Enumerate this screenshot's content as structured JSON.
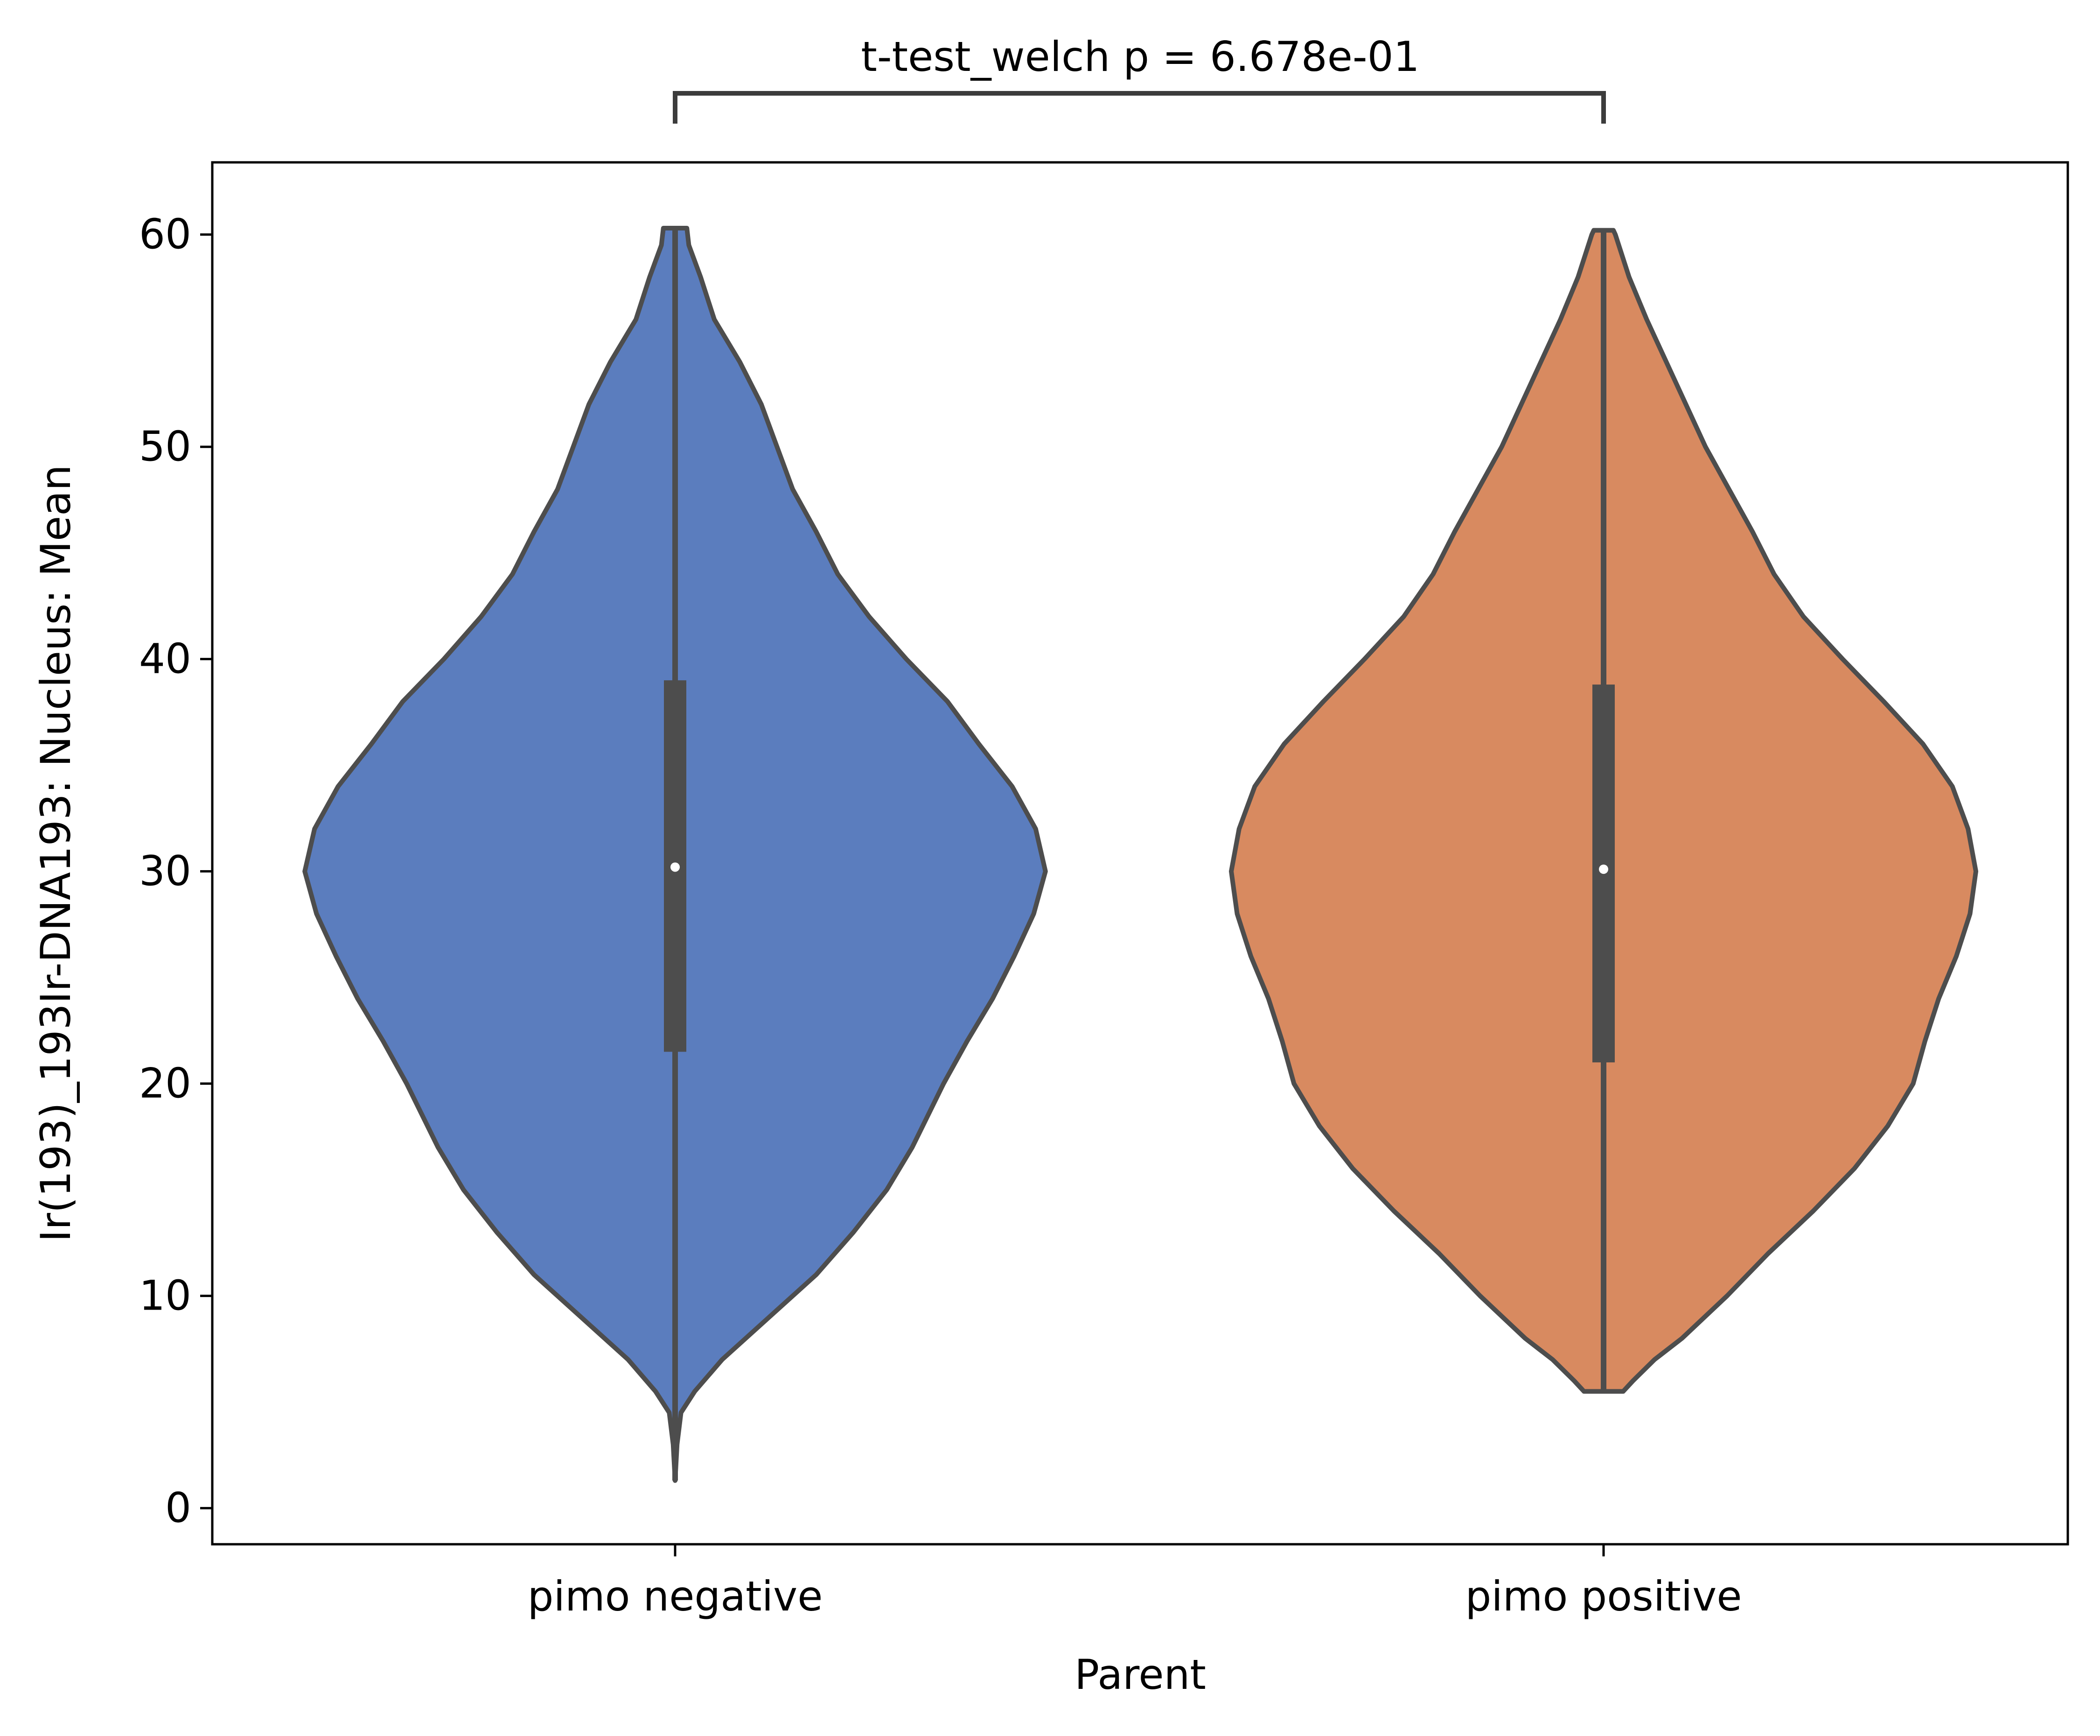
{
  "chart_data": {
    "type": "violin",
    "title": "",
    "xlabel": "Parent",
    "ylabel": "Ir(193)_193Ir-DNA193: Nucleus: Mean",
    "ylim": [
      -1.7,
      63.4
    ],
    "yticks": [
      0,
      10,
      20,
      30,
      40,
      50,
      60
    ],
    "grid": false,
    "legend": "none",
    "categories": [
      "pimo negative",
      "pimo positive"
    ],
    "series": [
      {
        "category": "pimo negative",
        "color": "#5b7dbe",
        "min": 1.3,
        "max": 60.3,
        "q1": 21.5,
        "median": 30.2,
        "q3": 39.0,
        "profile": [
          [
            1.3,
            0.0
          ],
          [
            3.0,
            0.01
          ],
          [
            4.5,
            0.03
          ],
          [
            5.5,
            0.1
          ],
          [
            7.0,
            0.24
          ],
          [
            9.0,
            0.48
          ],
          [
            11.0,
            0.72
          ],
          [
            13.0,
            0.91
          ],
          [
            15.0,
            1.08
          ],
          [
            17.0,
            1.21
          ],
          [
            20.0,
            1.37
          ],
          [
            22.0,
            1.49
          ],
          [
            24.0,
            1.62
          ],
          [
            26.0,
            1.73
          ],
          [
            28.0,
            1.83
          ],
          [
            30.0,
            1.89
          ],
          [
            32.0,
            1.84
          ],
          [
            34.0,
            1.72
          ],
          [
            36.0,
            1.55
          ],
          [
            38.0,
            1.39
          ],
          [
            40.0,
            1.18
          ],
          [
            42.0,
            0.99
          ],
          [
            44.0,
            0.83
          ],
          [
            46.0,
            0.72
          ],
          [
            48.0,
            0.6
          ],
          [
            50.0,
            0.52
          ],
          [
            52.0,
            0.44
          ],
          [
            54.0,
            0.33
          ],
          [
            56.0,
            0.2
          ],
          [
            58.0,
            0.13
          ],
          [
            59.5,
            0.07
          ],
          [
            60.3,
            0.06
          ]
        ]
      },
      {
        "category": "pimo positive",
        "color": "#d88a60",
        "min": 5.5,
        "max": 60.2,
        "q1": 21.0,
        "median": 30.1,
        "q3": 38.8,
        "profile": [
          [
            5.5,
            0.1
          ],
          [
            6.0,
            0.15
          ],
          [
            7.0,
            0.26
          ],
          [
            8.0,
            0.4
          ],
          [
            10.0,
            0.63
          ],
          [
            12.0,
            0.84
          ],
          [
            14.0,
            1.07
          ],
          [
            16.0,
            1.28
          ],
          [
            18.0,
            1.45
          ],
          [
            20.0,
            1.58
          ],
          [
            22.0,
            1.64
          ],
          [
            24.0,
            1.71
          ],
          [
            26.0,
            1.8
          ],
          [
            28.0,
            1.87
          ],
          [
            30.0,
            1.9
          ],
          [
            32.0,
            1.86
          ],
          [
            34.0,
            1.78
          ],
          [
            36.0,
            1.63
          ],
          [
            38.0,
            1.43
          ],
          [
            40.0,
            1.22
          ],
          [
            42.0,
            1.02
          ],
          [
            44.0,
            0.87
          ],
          [
            46.0,
            0.76
          ],
          [
            48.0,
            0.64
          ],
          [
            50.0,
            0.52
          ],
          [
            52.0,
            0.42
          ],
          [
            54.0,
            0.32
          ],
          [
            56.0,
            0.22
          ],
          [
            58.0,
            0.13
          ],
          [
            60.0,
            0.06
          ],
          [
            60.2,
            0.05
          ]
        ]
      }
    ],
    "annotation": {
      "text": "t-test_welch p = 6.678e-01",
      "between": [
        "pimo negative",
        "pimo positive"
      ]
    }
  }
}
